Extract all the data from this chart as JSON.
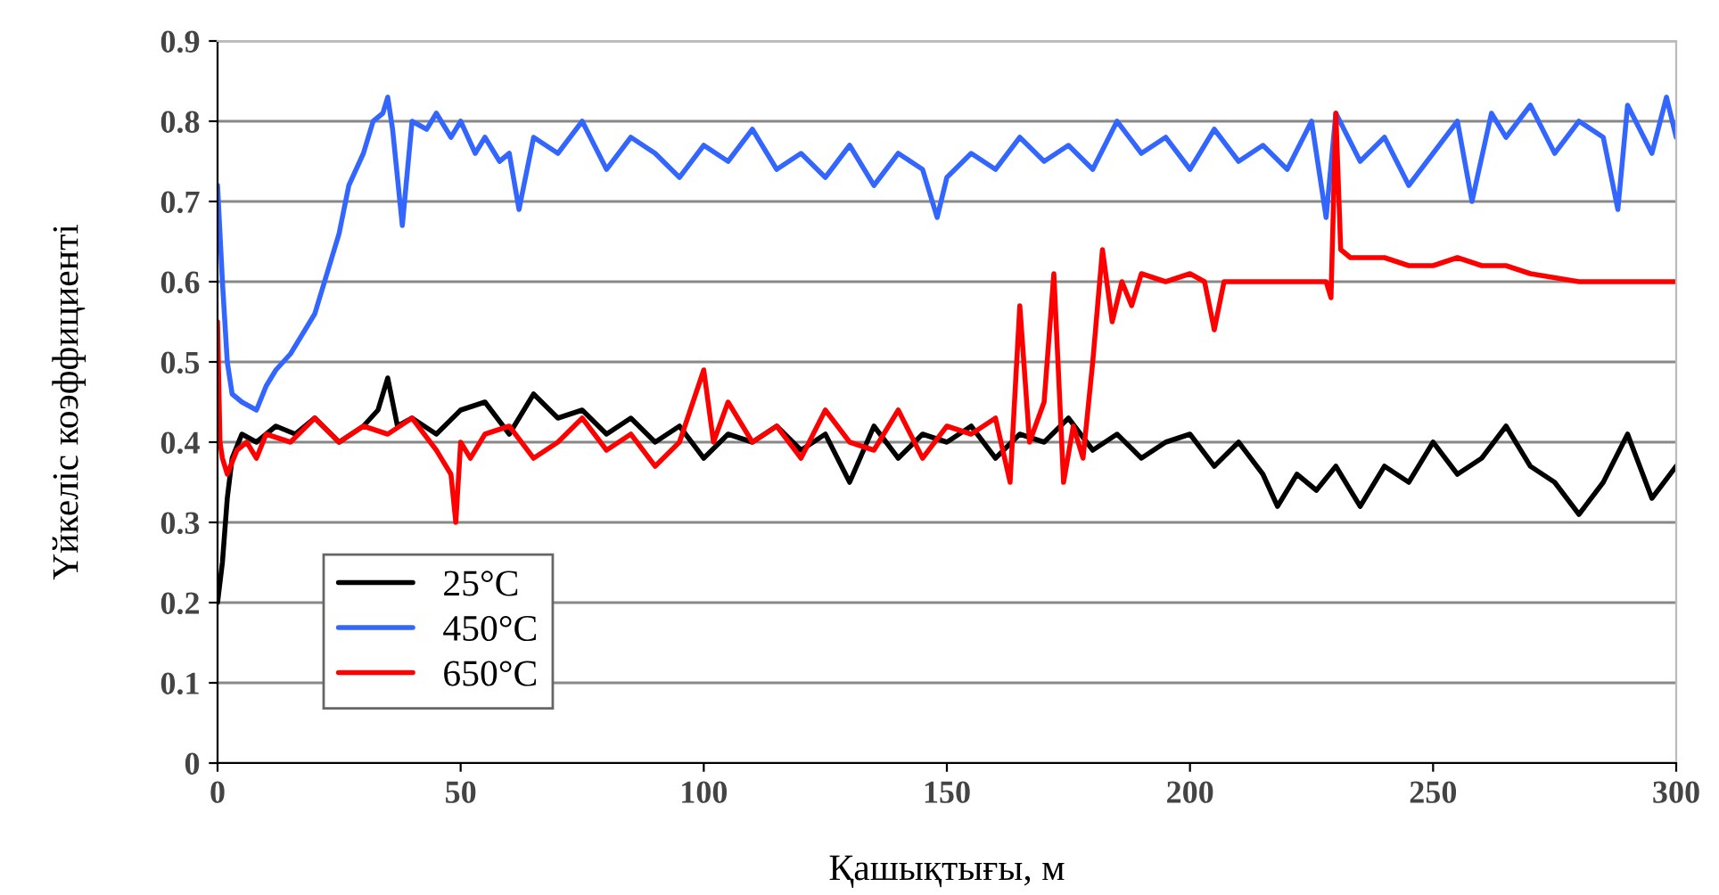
{
  "chart_data": {
    "type": "line",
    "xlabel": "Қашықтығы, м",
    "ylabel": "Үйкеліс коэффициенті",
    "xlim": [
      0,
      300
    ],
    "xticks": [
      0,
      50,
      100,
      150,
      200,
      250,
      300
    ],
    "ylim": [
      0,
      0.9
    ],
    "yticks": [
      0,
      0.1,
      0.2,
      0.3,
      0.4,
      0.5,
      0.6,
      0.7,
      0.8,
      0.9
    ],
    "grid": "y",
    "legend": "bottom left",
    "line_style": "solid",
    "marker": "none",
    "series": [
      {
        "name": "25°C",
        "color": "#000000",
        "x": [
          0,
          1,
          2,
          3,
          5,
          8,
          12,
          16,
          20,
          25,
          30,
          33,
          35,
          37,
          40,
          45,
          50,
          55,
          60,
          65,
          70,
          75,
          80,
          85,
          90,
          95,
          100,
          105,
          110,
          115,
          120,
          125,
          130,
          135,
          140,
          145,
          150,
          155,
          160,
          165,
          170,
          175,
          180,
          185,
          190,
          195,
          200,
          205,
          210,
          215,
          218,
          222,
          226,
          230,
          235,
          240,
          245,
          250,
          255,
          260,
          265,
          270,
          275,
          280,
          285,
          290,
          295,
          300
        ],
        "values": [
          0.2,
          0.25,
          0.33,
          0.38,
          0.41,
          0.4,
          0.42,
          0.41,
          0.43,
          0.4,
          0.42,
          0.44,
          0.48,
          0.42,
          0.43,
          0.41,
          0.44,
          0.45,
          0.41,
          0.46,
          0.43,
          0.44,
          0.41,
          0.43,
          0.4,
          0.42,
          0.38,
          0.41,
          0.4,
          0.42,
          0.39,
          0.41,
          0.35,
          0.42,
          0.38,
          0.41,
          0.4,
          0.42,
          0.38,
          0.41,
          0.4,
          0.43,
          0.39,
          0.41,
          0.38,
          0.4,
          0.41,
          0.37,
          0.4,
          0.36,
          0.32,
          0.36,
          0.34,
          0.37,
          0.32,
          0.37,
          0.35,
          0.4,
          0.36,
          0.38,
          0.42,
          0.37,
          0.35,
          0.31,
          0.35,
          0.41,
          0.33,
          0.37
        ]
      },
      {
        "name": "450°C",
        "color": "#3366ff",
        "x": [
          0,
          1,
          2,
          3,
          5,
          8,
          10,
          12,
          15,
          18,
          20,
          22,
          25,
          27,
          30,
          32,
          34,
          35,
          36,
          38,
          40,
          43,
          45,
          48,
          50,
          53,
          55,
          58,
          60,
          62,
          65,
          70,
          75,
          80,
          85,
          90,
          95,
          100,
          105,
          110,
          115,
          120,
          125,
          130,
          135,
          140,
          145,
          148,
          150,
          155,
          160,
          165,
          170,
          175,
          180,
          185,
          190,
          195,
          200,
          205,
          210,
          215,
          220,
          225,
          228,
          230,
          235,
          240,
          245,
          250,
          255,
          258,
          262,
          265,
          270,
          275,
          280,
          285,
          288,
          290,
          295,
          298,
          300
        ],
        "values": [
          0.72,
          0.6,
          0.5,
          0.46,
          0.45,
          0.44,
          0.47,
          0.49,
          0.51,
          0.54,
          0.56,
          0.6,
          0.66,
          0.72,
          0.76,
          0.8,
          0.81,
          0.83,
          0.79,
          0.67,
          0.8,
          0.79,
          0.81,
          0.78,
          0.8,
          0.76,
          0.78,
          0.75,
          0.76,
          0.69,
          0.78,
          0.76,
          0.8,
          0.74,
          0.78,
          0.76,
          0.73,
          0.77,
          0.75,
          0.79,
          0.74,
          0.76,
          0.73,
          0.77,
          0.72,
          0.76,
          0.74,
          0.68,
          0.73,
          0.76,
          0.74,
          0.78,
          0.75,
          0.77,
          0.74,
          0.8,
          0.76,
          0.78,
          0.74,
          0.79,
          0.75,
          0.77,
          0.74,
          0.8,
          0.68,
          0.81,
          0.75,
          0.78,
          0.72,
          0.76,
          0.8,
          0.7,
          0.81,
          0.78,
          0.82,
          0.76,
          0.8,
          0.78,
          0.69,
          0.82,
          0.76,
          0.83,
          0.78
        ]
      },
      {
        "name": "650°C",
        "color": "#ff0000",
        "x": [
          0,
          0.5,
          1,
          2,
          4,
          6,
          8,
          10,
          15,
          20,
          25,
          30,
          35,
          40,
          45,
          48,
          49,
          50,
          52,
          55,
          60,
          65,
          70,
          75,
          80,
          85,
          90,
          95,
          100,
          102,
          105,
          110,
          115,
          120,
          125,
          130,
          135,
          140,
          145,
          150,
          155,
          160,
          163,
          165,
          167,
          170,
          172,
          174,
          176,
          178,
          180,
          182,
          184,
          186,
          188,
          190,
          195,
          200,
          203,
          205,
          207,
          210,
          215,
          220,
          225,
          228,
          229,
          230,
          231,
          233,
          240,
          245,
          250,
          255,
          260,
          265,
          270,
          280,
          290,
          300
        ],
        "values": [
          0.55,
          0.4,
          0.38,
          0.36,
          0.39,
          0.4,
          0.38,
          0.41,
          0.4,
          0.43,
          0.4,
          0.42,
          0.41,
          0.43,
          0.39,
          0.36,
          0.3,
          0.4,
          0.38,
          0.41,
          0.42,
          0.38,
          0.4,
          0.43,
          0.39,
          0.41,
          0.37,
          0.4,
          0.49,
          0.4,
          0.45,
          0.4,
          0.42,
          0.38,
          0.44,
          0.4,
          0.39,
          0.44,
          0.38,
          0.42,
          0.41,
          0.43,
          0.35,
          0.57,
          0.4,
          0.45,
          0.61,
          0.35,
          0.42,
          0.38,
          0.5,
          0.64,
          0.55,
          0.6,
          0.57,
          0.61,
          0.6,
          0.61,
          0.6,
          0.54,
          0.6,
          0.6,
          0.6,
          0.6,
          0.6,
          0.6,
          0.58,
          0.81,
          0.64,
          0.63,
          0.63,
          0.62,
          0.62,
          0.63,
          0.62,
          0.62,
          0.61,
          0.6,
          0.6,
          0.6
        ]
      }
    ]
  }
}
